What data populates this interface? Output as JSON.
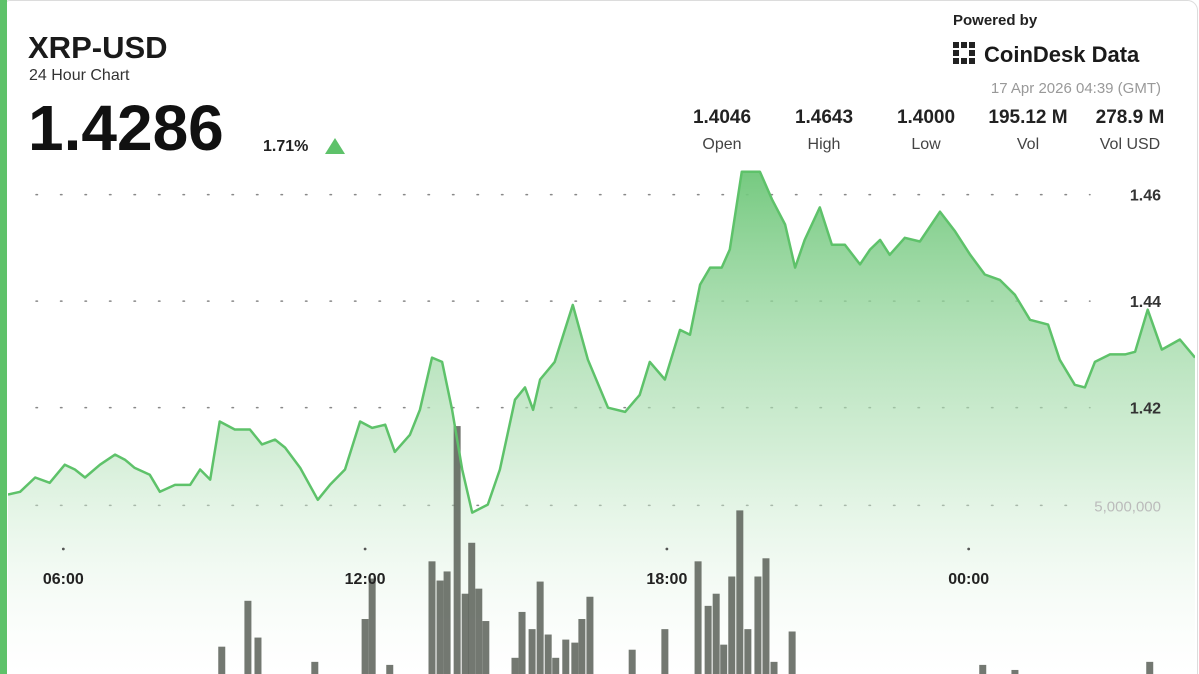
{
  "chart_data": {
    "type": "area",
    "title": "XRP-USD",
    "subtitle": "24 Hour Chart",
    "price": "1.4286",
    "change": "1.71%",
    "powered_by": "Powered by",
    "brand": "CoinDesk Data",
    "timestamp": "17 Apr 2026 04:39 (GMT)",
    "stats": [
      {
        "value": "1.4046",
        "label": "Open"
      },
      {
        "value": "1.4643",
        "label": "High"
      },
      {
        "value": "1.4000",
        "label": "Low"
      },
      {
        "value": "195.12 M",
        "label": "Vol"
      },
      {
        "value": "278.9 M",
        "label": "Vol USD"
      }
    ],
    "x": [
      4.9,
      5.14,
      5.44,
      5.73,
      6.03,
      6.23,
      6.43,
      6.73,
      7.03,
      7.23,
      7.42,
      7.72,
      7.92,
      8.22,
      8.52,
      8.72,
      8.92,
      9.11,
      9.41,
      9.71,
      9.95,
      10.21,
      10.41,
      10.71,
      11.06,
      11.3,
      11.6,
      11.9,
      12.14,
      12.4,
      12.59,
      12.89,
      13.09,
      13.33,
      13.53,
      13.73,
      13.93,
      14.13,
      14.44,
      14.68,
      14.98,
      15.18,
      15.34,
      15.48,
      15.77,
      16.13,
      16.43,
      16.83,
      17.17,
      17.46,
      17.66,
      17.96,
      18.26,
      18.46,
      18.66,
      18.86,
      19.09,
      19.25,
      19.49,
      19.85,
      20.09,
      20.35,
      20.55,
      20.74,
      21.04,
      21.28,
      21.54,
      21.84,
      22.04,
      22.24,
      22.43,
      22.73,
      23.03,
      23.43,
      23.73,
      24.03,
      24.32,
      24.62,
      24.92,
      25.22,
      25.58,
      25.81,
      26.11,
      26.31,
      26.51,
      26.81,
      27.11,
      27.31,
      27.56,
      27.84,
      28.2,
      28.5
    ],
    "series": [
      {
        "color": "#5ec26a",
        "values": [
          1.4037,
          1.4042,
          1.4069,
          1.4059,
          1.4093,
          1.4084,
          1.4069,
          1.4093,
          1.4112,
          1.4102,
          1.4087,
          1.4074,
          1.4042,
          1.4055,
          1.4055,
          1.4084,
          1.4065,
          1.4174,
          1.4159,
          1.4159,
          1.4131,
          1.414,
          1.4125,
          1.4087,
          1.4027,
          1.4055,
          1.4084,
          1.4174,
          1.4162,
          1.4168,
          1.4117,
          1.4149,
          1.4196,
          1.4294,
          1.4286,
          1.4196,
          1.4084,
          1.4003,
          1.4018,
          1.4084,
          1.4215,
          1.4238,
          1.4196,
          1.4253,
          1.4286,
          1.4393,
          1.429,
          1.42,
          1.4192,
          1.4224,
          1.4286,
          1.4253,
          1.4346,
          1.4337,
          1.4431,
          1.4463,
          1.4463,
          1.4497,
          1.4643,
          1.4643,
          1.4591,
          1.4544,
          1.4463,
          1.4515,
          1.4576,
          1.4506,
          1.4506,
          1.4469,
          1.4497,
          1.4515,
          1.4487,
          1.4519,
          1.4512,
          1.4568,
          1.4531,
          1.4487,
          1.445,
          1.444,
          1.4412,
          1.4365,
          1.4356,
          1.429,
          1.4243,
          1.4238,
          1.4286,
          1.43,
          1.43,
          1.4305,
          1.4384,
          1.4309,
          1.4328,
          1.4294
        ]
      }
    ],
    "volume": {
      "axis": "y2",
      "color": "#5b6058",
      "x": [
        9.15,
        9.67,
        9.87,
        11.0,
        12.0,
        12.14,
        12.49,
        13.33,
        13.49,
        13.63,
        13.83,
        13.99,
        14.12,
        14.26,
        14.4,
        14.98,
        15.12,
        15.32,
        15.48,
        15.64,
        15.79,
        15.99,
        16.17,
        16.31,
        16.47,
        17.31,
        17.96,
        18.62,
        18.82,
        18.98,
        19.13,
        19.29,
        19.45,
        19.61,
        19.81,
        19.97,
        20.13,
        20.49,
        24.28,
        24.92,
        27.6
      ],
      "values": [
        810000,
        2170000,
        1080000,
        360000,
        1630000,
        2830000,
        270000,
        3340000,
        2770000,
        3040000,
        7350000,
        2380000,
        3890000,
        2530000,
        1570000,
        480000,
        1840000,
        1330000,
        2740000,
        1170000,
        480000,
        1020000,
        930000,
        1630000,
        2290000,
        720000,
        1330000,
        3340000,
        2020000,
        2380000,
        870000,
        2890000,
        4850000,
        1330000,
        2890000,
        3430000,
        360000,
        1260000,
        270000,
        120000,
        360000
      ]
    },
    "xlim": [
      4.9,
      28.5
    ],
    "xticks": [
      {
        "value": 6,
        "label": "06:00"
      },
      {
        "value": 12,
        "label": "12:00"
      },
      {
        "value": 18,
        "label": "18:00"
      },
      {
        "value": 24,
        "label": "00:00"
      }
    ],
    "ylim": [
      1.37,
      1.465
    ],
    "yticks": [
      1.42,
      1.44,
      1.46
    ],
    "y2lim": [
      0,
      15000000
    ],
    "y2ticks": [
      {
        "value": 5000000,
        "label": "5,000,000"
      }
    ],
    "grid": true
  }
}
